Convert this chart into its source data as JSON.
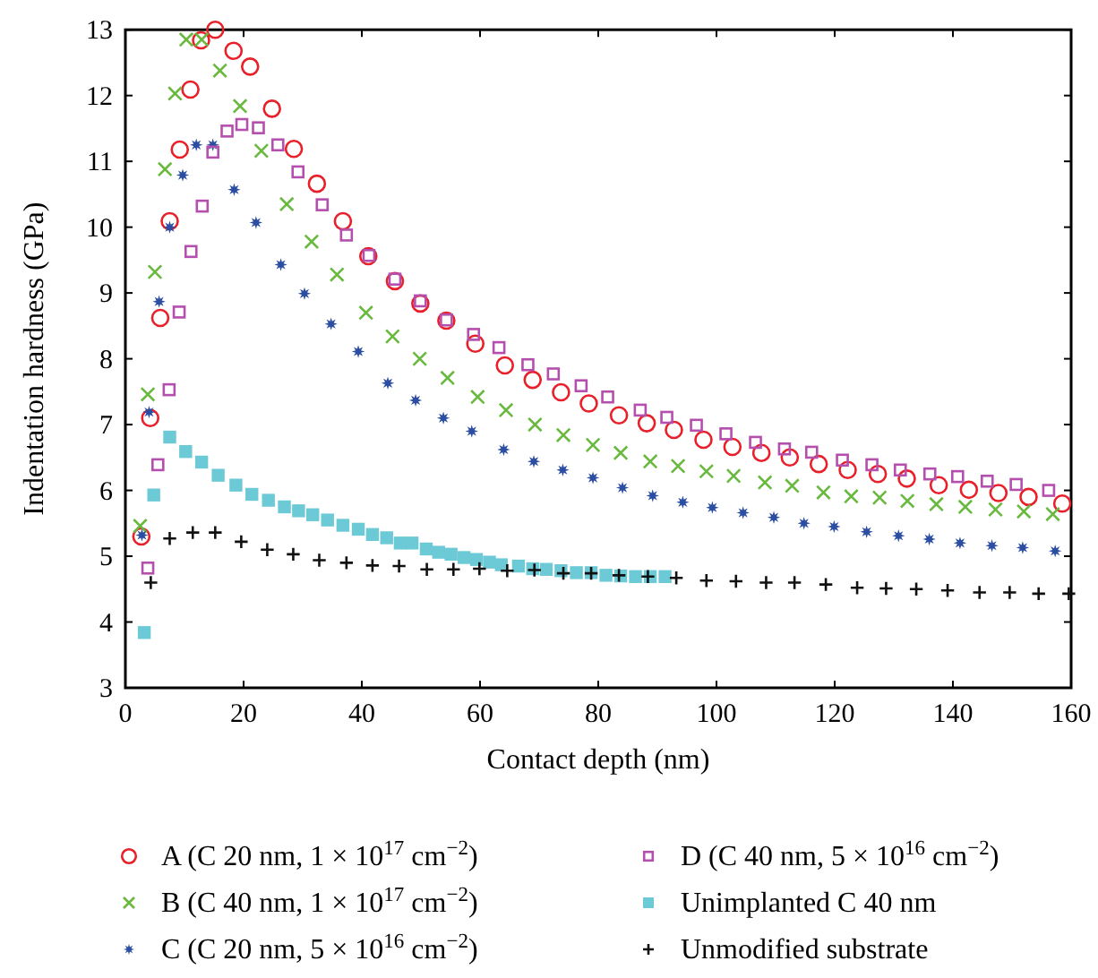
{
  "chart_data": {
    "type": "scatter",
    "xlabel": "Contact depth (nm)",
    "ylabel": "Indentation hardness (GPa)",
    "xlim": [
      0,
      160
    ],
    "ylim": [
      3,
      13
    ],
    "xticks": [
      0,
      20,
      40,
      60,
      80,
      100,
      120,
      140,
      160
    ],
    "yticks": [
      3,
      4,
      5,
      6,
      7,
      8,
      9,
      10,
      11,
      12,
      13
    ],
    "grid": false,
    "legend": "bottom",
    "series": [
      {
        "name": "A (C 20 nm, 1 × 10$^{17}$ cm$^{−2}$)",
        "color": "#e8202a",
        "marker": "circle",
        "x": [
          2.7,
          4.2,
          5.9,
          7.5,
          9.2,
          11.0,
          12.8,
          15.2,
          18.3,
          21.1,
          24.8,
          28.5,
          32.4,
          36.8,
          41.1,
          45.6,
          49.9,
          54.3,
          59.2,
          64.2,
          68.9,
          73.7,
          78.4,
          83.5,
          88.2,
          92.8,
          97.8,
          102.7,
          107.6,
          112.4,
          117.3,
          122.2,
          127.3,
          132.2,
          137.6,
          142.7,
          147.7,
          152.8,
          158.5
        ],
        "values": [
          5.3,
          7.1,
          8.62,
          10.09,
          11.18,
          12.09,
          12.84,
          13.0,
          12.68,
          12.44,
          11.8,
          11.19,
          10.66,
          10.09,
          9.56,
          9.18,
          8.84,
          8.58,
          8.23,
          7.9,
          7.68,
          7.49,
          7.32,
          7.14,
          7.02,
          6.92,
          6.77,
          6.66,
          6.57,
          6.5,
          6.4,
          6.31,
          6.25,
          6.18,
          6.08,
          6.01,
          5.96,
          5.9,
          5.8
        ]
      },
      {
        "name": "B (C 40 nm, 1 × 10$^{17}$ cm$^{−2}$)",
        "color": "#6ab93f",
        "marker": "cross",
        "x": [
          2.5,
          3.8,
          5.0,
          6.7,
          8.4,
          10.3,
          12.9,
          16.0,
          19.4,
          23.0,
          27.3,
          31.5,
          35.8,
          40.7,
          45.2,
          49.8,
          54.5,
          59.6,
          64.4,
          69.3,
          74.1,
          79.1,
          83.8,
          88.8,
          93.5,
          98.3,
          102.9,
          108.2,
          112.8,
          118.1,
          122.8,
          127.6,
          132.3,
          137.2,
          142.1,
          147.2,
          152.0,
          156.9
        ],
        "values": [
          5.46,
          7.46,
          9.32,
          10.88,
          12.03,
          12.85,
          12.85,
          12.38,
          11.84,
          11.16,
          10.35,
          9.78,
          9.28,
          8.7,
          8.34,
          8.0,
          7.71,
          7.42,
          7.22,
          7.0,
          6.84,
          6.69,
          6.57,
          6.44,
          6.37,
          6.29,
          6.22,
          6.12,
          6.07,
          5.97,
          5.91,
          5.89,
          5.84,
          5.79,
          5.75,
          5.71,
          5.68,
          5.64
        ]
      },
      {
        "name": "C (C 20 nm, 5 × 10$^{16}$ cm$^{−2}$)",
        "color": "#2b4ea2",
        "marker": "star",
        "x": [
          2.8,
          4.0,
          5.7,
          7.5,
          9.7,
          12.0,
          14.8,
          18.4,
          22.1,
          26.3,
          30.3,
          34.8,
          39.4,
          44.4,
          49.1,
          53.8,
          58.6,
          64.0,
          69.1,
          74.0,
          79.1,
          84.1,
          89.2,
          94.3,
          99.3,
          104.5,
          109.7,
          114.8,
          119.9,
          125.4,
          130.8,
          136.0,
          141.2,
          146.6,
          151.8,
          157.3
        ],
        "values": [
          5.32,
          7.19,
          8.87,
          10.0,
          10.79,
          11.25,
          11.25,
          10.57,
          10.07,
          9.43,
          8.99,
          8.53,
          8.11,
          7.63,
          7.37,
          7.1,
          6.9,
          6.62,
          6.44,
          6.31,
          6.19,
          6.04,
          5.92,
          5.82,
          5.74,
          5.66,
          5.59,
          5.5,
          5.45,
          5.37,
          5.31,
          5.26,
          5.2,
          5.16,
          5.13,
          5.08
        ]
      },
      {
        "name": "D (C 40 nm, 5 × 10$^{16}$ cm$^{−2}$)",
        "color": "#b54fae",
        "marker": "square",
        "x": [
          3.8,
          5.5,
          7.4,
          9.1,
          11.1,
          13.0,
          14.8,
          17.2,
          19.7,
          22.5,
          25.8,
          29.2,
          33.3,
          37.4,
          41.2,
          45.6,
          49.9,
          54.3,
          58.9,
          63.2,
          68.1,
          72.4,
          77.1,
          81.6,
          87.1,
          91.6,
          96.6,
          101.6,
          106.6,
          111.5,
          116.1,
          121.3,
          126.3,
          131.1,
          136.1,
          140.8,
          145.8,
          150.7,
          156.2
        ],
        "values": [
          4.82,
          6.39,
          7.53,
          8.71,
          9.63,
          10.32,
          11.14,
          11.46,
          11.56,
          11.51,
          11.25,
          10.84,
          10.34,
          9.88,
          9.57,
          9.21,
          8.88,
          8.59,
          8.37,
          8.17,
          7.91,
          7.77,
          7.59,
          7.42,
          7.22,
          7.11,
          6.99,
          6.86,
          6.73,
          6.63,
          6.58,
          6.46,
          6.39,
          6.31,
          6.25,
          6.21,
          6.14,
          6.09,
          6.0
        ]
      },
      {
        "name": "Unimplanted C 40 nm",
        "color": "#6cc9d6",
        "marker": "square",
        "x": [
          3.2,
          4.8,
          7.5,
          10.2,
          12.9,
          15.7,
          18.7,
          21.4,
          24.2,
          26.9,
          29.3,
          31.7,
          34.2,
          36.8,
          39.4,
          41.8,
          44.2,
          46.5,
          48.5,
          50.9,
          53.0,
          55.1,
          57.3,
          59.4,
          61.6,
          63.6,
          66.5,
          68.9,
          71.2,
          73.7,
          76.3,
          78.8,
          81.3,
          83.8,
          86.3,
          88.8,
          91.3
        ],
        "values": [
          3.84,
          5.93,
          6.81,
          6.59,
          6.43,
          6.23,
          6.08,
          5.94,
          5.85,
          5.75,
          5.69,
          5.63,
          5.55,
          5.47,
          5.41,
          5.33,
          5.28,
          5.2,
          5.2,
          5.11,
          5.06,
          5.03,
          4.98,
          4.95,
          4.91,
          4.87,
          4.85,
          4.81,
          4.8,
          4.78,
          4.75,
          4.75,
          4.71,
          4.7,
          4.69,
          4.69,
          4.69
        ]
      },
      {
        "name": "Unmodified substrate",
        "color": "#111111",
        "marker": "cross",
        "x": [
          4.3,
          7.5,
          11.4,
          15.2,
          19.6,
          24.0,
          28.4,
          32.8,
          37.4,
          41.8,
          46.3,
          51.0,
          55.5,
          59.9,
          64.6,
          69.2,
          74.1,
          78.8,
          83.5,
          88.4,
          93.2,
          98.3,
          103.3,
          108.4,
          113.2,
          118.5,
          123.8,
          128.7,
          133.8,
          139.1,
          144.5,
          149.6,
          154.5,
          159.6
        ],
        "values": [
          4.6,
          5.27,
          5.36,
          5.36,
          5.22,
          5.1,
          5.03,
          4.94,
          4.9,
          4.86,
          4.85,
          4.8,
          4.8,
          4.81,
          4.78,
          4.79,
          4.74,
          4.74,
          4.71,
          4.69,
          4.67,
          4.63,
          4.62,
          4.6,
          4.6,
          4.57,
          4.52,
          4.51,
          4.5,
          4.48,
          4.45,
          4.45,
          4.43,
          4.43
        ]
      }
    ]
  }
}
